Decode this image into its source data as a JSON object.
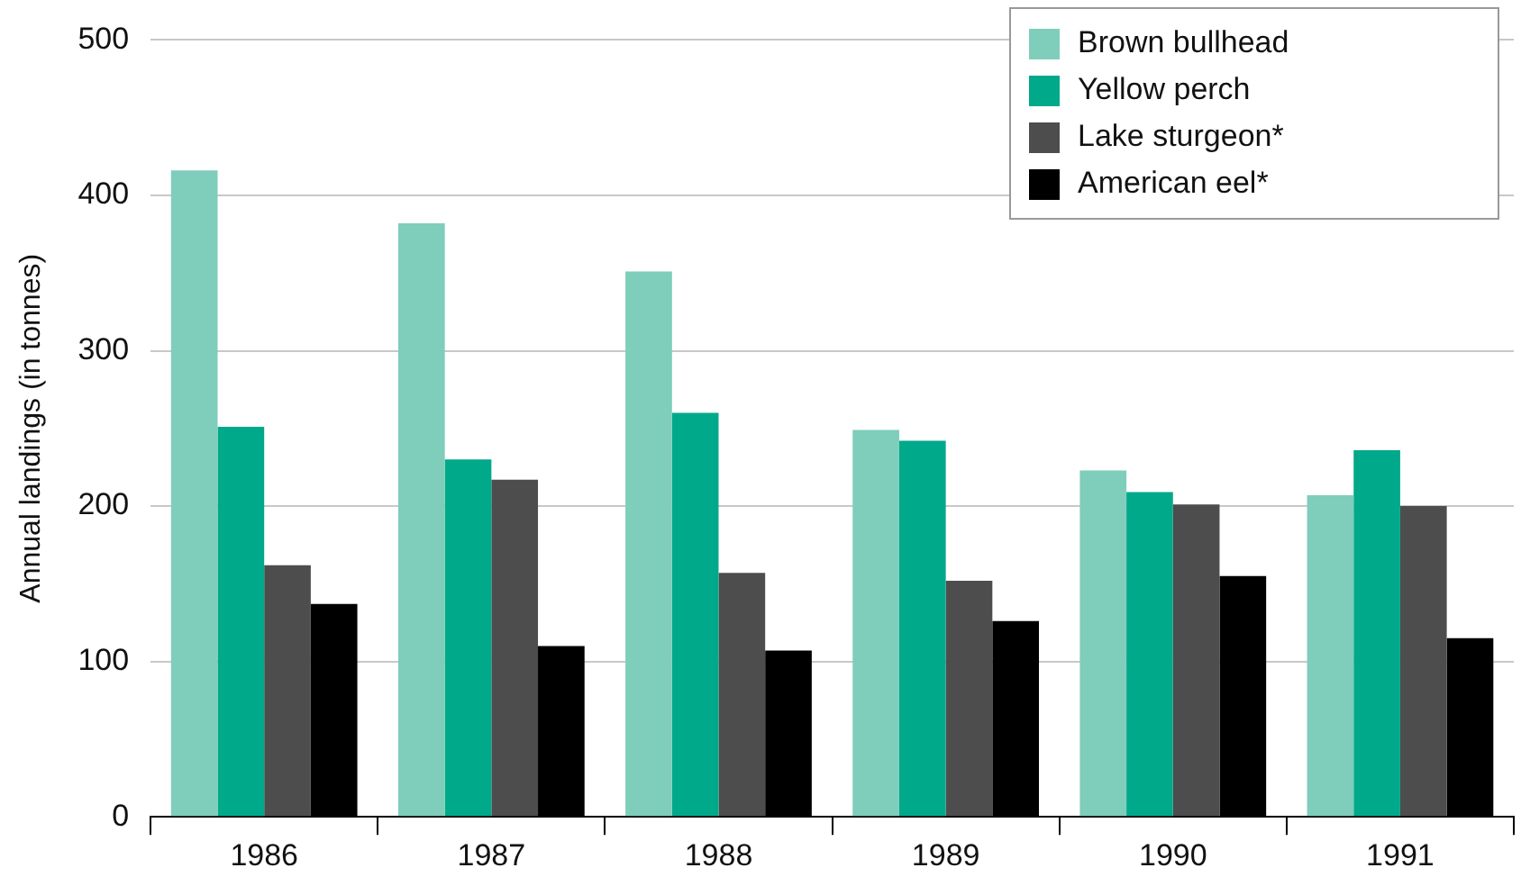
{
  "chart_data": {
    "type": "bar",
    "ylabel": "Annual landings (in tonnes)",
    "categories": [
      "1986",
      "1987",
      "1988",
      "1989",
      "1990",
      "1991"
    ],
    "series": [
      {
        "name": "Brown bullhead",
        "color": "#7fcdbb",
        "values": [
          416,
          382,
          351,
          249,
          223,
          207
        ]
      },
      {
        "name": "Yellow perch",
        "color": "#00a98a",
        "values": [
          251,
          230,
          260,
          242,
          209,
          236
        ]
      },
      {
        "name": "Lake sturgeon*",
        "color": "#4d4d4d",
        "values": [
          162,
          217,
          157,
          152,
          201,
          200
        ]
      },
      {
        "name": "American eel*",
        "color": "#000000",
        "values": [
          137,
          110,
          107,
          126,
          155,
          115
        ]
      }
    ],
    "ylim": [
      0,
      500
    ],
    "yticks": [
      0,
      100,
      200,
      300,
      400,
      500
    ],
    "grid": "y",
    "legend": "top right"
  }
}
